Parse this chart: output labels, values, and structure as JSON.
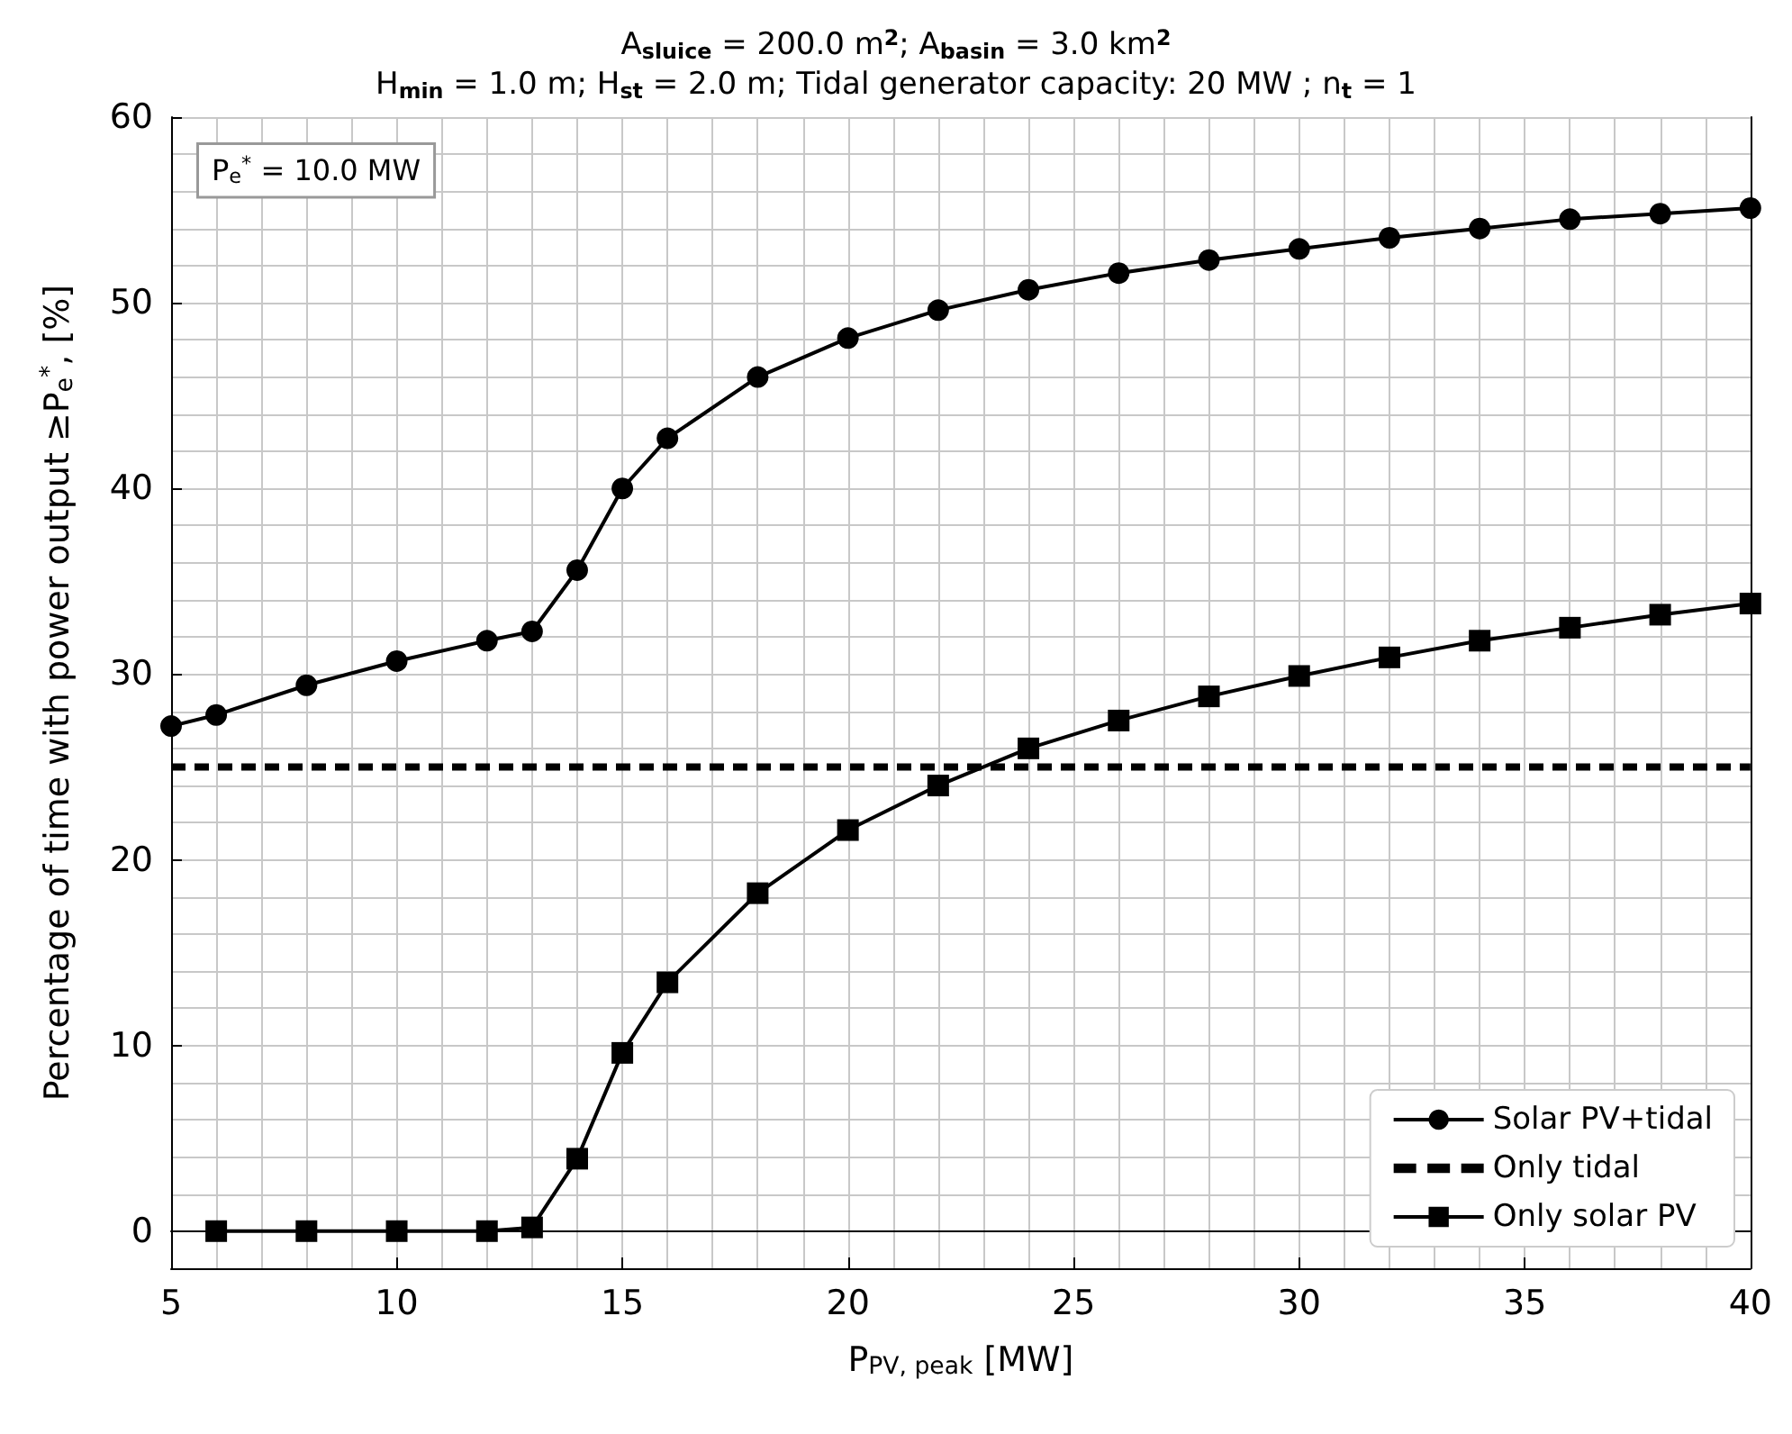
{
  "chart_data": {
    "type": "line",
    "title": "A$_{sluice}$ = 200.0 m$^{2}$; A$_{basin}$ = 3.0 km$^{2}$",
    "subtitle": "H$_{min}$ = 1.0 m; H$_{st}$ = 2.0 m; Tidal generator capacity: 20 MW ; n$_{t}$ = 1",
    "xlabel": "P$_{PV, peak}$ [MW]",
    "ylabel": "Percentage of time with power output ≥P$_{e}$$^{*}$, [%]",
    "annotations": [
      "P$_{e}$$^{*}$ = 10.0 MW"
    ],
    "series": [
      {
        "name": "Solar PV+tidal",
        "color": "#000000",
        "marker": "circle",
        "x": [
          5,
          6,
          8,
          10,
          12,
          13,
          14,
          15,
          16,
          18,
          20,
          22,
          24,
          26,
          28,
          30,
          32,
          34,
          36,
          38,
          40
        ],
        "values": [
          27.2,
          27.8,
          29.4,
          30.7,
          31.8,
          32.3,
          35.6,
          40.0,
          42.7,
          46.0,
          48.1,
          49.6,
          50.7,
          51.6,
          52.3,
          52.9,
          53.5,
          54.0,
          54.5,
          54.8,
          55.1
        ]
      },
      {
        "name": "Only tidal",
        "color": "#000000",
        "marker": "none",
        "line_style": "dashed",
        "x": [
          5,
          40
        ],
        "values": [
          25,
          25
        ]
      },
      {
        "name": "Only solar PV",
        "color": "#000000",
        "marker": "square",
        "x": [
          6,
          8,
          10,
          12,
          13,
          14,
          15,
          16,
          18,
          20,
          22,
          24,
          26,
          28,
          30,
          32,
          34,
          36,
          38,
          40
        ],
        "values": [
          0,
          0,
          0,
          0,
          0.2,
          3.9,
          9.6,
          13.4,
          18.2,
          21.6,
          24.0,
          26.0,
          27.5,
          28.8,
          29.9,
          30.9,
          31.8,
          32.5,
          33.2,
          33.8
        ]
      }
    ],
    "xlim": [
      5,
      40
    ],
    "xticks": [
      5,
      10,
      15,
      20,
      25,
      30,
      35,
      40
    ],
    "ylim": [
      -2,
      60
    ],
    "yticks": [
      0,
      10,
      20,
      30,
      40,
      50,
      60
    ],
    "grid": true,
    "legend": "bottom right",
    "line_style": "solid"
  }
}
